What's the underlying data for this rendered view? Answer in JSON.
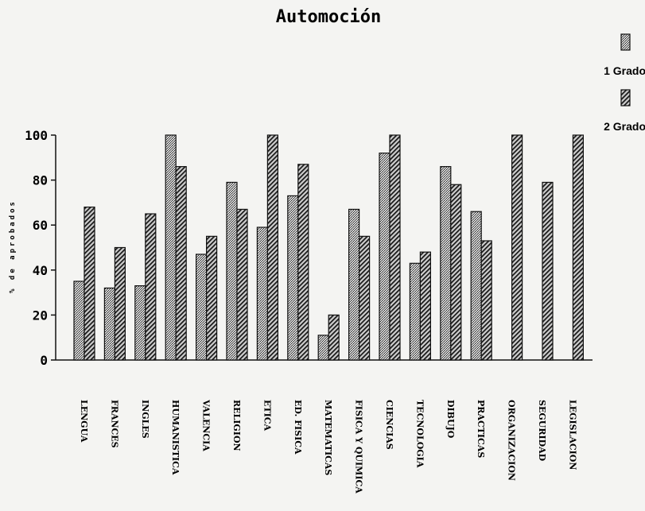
{
  "chart_data": {
    "type": "bar",
    "title": "Automoción",
    "ylabel": "% de aprobados",
    "xlabel": "",
    "ylim": [
      0,
      100
    ],
    "yticks": [
      0,
      20,
      40,
      60,
      80,
      100
    ],
    "grid": false,
    "legend_position": "top-right",
    "categories": [
      "LENGUA",
      "FRANCES",
      "INGLES",
      "HUMANISTICA",
      "VALENCIA",
      "RELIGION",
      "ETICA",
      "ED. FISICA",
      "MATEMATICAS",
      "FISICA Y QUIMICA",
      "CIENCIAS",
      "TECNOLOGIA",
      "DIBUJO",
      "PRACTICAS",
      "ORGANIZACION",
      "SEGURIDAD",
      "LEGISLACION"
    ],
    "series": [
      {
        "name": "1 Grado",
        "color": "#9a9a9a",
        "values": [
          35,
          32,
          33,
          100,
          47,
          79,
          59,
          73,
          11,
          67,
          92,
          43,
          86,
          66,
          null,
          null,
          null
        ]
      },
      {
        "name": "2 Grado",
        "color": "#3a3a3a",
        "values": [
          68,
          50,
          65,
          86,
          55,
          67,
          100,
          87,
          20,
          55,
          100,
          48,
          78,
          53,
          100,
          79,
          100
        ]
      }
    ]
  }
}
